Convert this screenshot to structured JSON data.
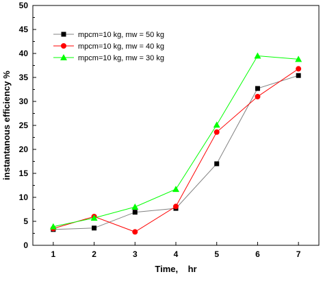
{
  "chart_data": {
    "type": "line",
    "x": [
      1,
      2,
      3,
      4,
      5,
      6,
      7
    ],
    "xlabel": "Time,    hr",
    "ylabel": "instantanous efficiency %",
    "xlim": [
      0.5,
      7.5
    ],
    "ylim": [
      0,
      50
    ],
    "xticks": [
      1,
      2,
      3,
      4,
      5,
      6,
      7
    ],
    "yticks": [
      0,
      5,
      10,
      15,
      20,
      25,
      30,
      35,
      40,
      45,
      50
    ],
    "grid": false,
    "legend_position": "top-left",
    "series": [
      {
        "name": "mpcm=10 kg, mw = 50 kg",
        "marker": "square",
        "color": "#000000",
        "line_color": "#808080",
        "values": [
          3.3,
          3.6,
          6.9,
          7.7,
          17.0,
          32.7,
          35.4
        ]
      },
      {
        "name": "mpcm=10 kg, mw = 40 kg",
        "marker": "circle",
        "color": "#ff0000",
        "line_color": "#ff0000",
        "values": [
          3.5,
          6.0,
          2.8,
          8.1,
          23.6,
          31.0,
          36.8
        ]
      },
      {
        "name": "mpcm=10 kg, mw = 30 kg",
        "marker": "triangle",
        "color": "#00ff00",
        "line_color": "#00ff00",
        "values": [
          3.9,
          5.7,
          8.0,
          11.7,
          25.1,
          39.5,
          38.8
        ]
      }
    ]
  }
}
